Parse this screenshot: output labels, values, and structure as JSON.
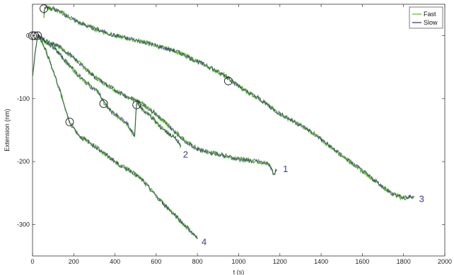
{
  "chart_data": {
    "type": "line",
    "title": "",
    "xlabel": "t (s)",
    "ylabel": "Extension (nm)",
    "xlim": [
      0,
      2000
    ],
    "ylim": [
      -350,
      50
    ],
    "xticks": [
      0,
      200,
      400,
      600,
      800,
      1000,
      1200,
      1400,
      1600,
      1800,
      2000
    ],
    "yticks": [
      -300,
      -200,
      -100,
      0
    ],
    "grid": false,
    "legend_position": "top-right",
    "colors": {
      "Fast": "#5ab52e",
      "Slow": "#2e3070",
      "label": "#3d3a8c",
      "marker": "#222222"
    },
    "series": [
      {
        "name": "Fast",
        "segments": [
          {
            "trace": "1",
            "points": [
              [
                0,
                -65
              ],
              [
                15,
                -20
              ],
              [
                25,
                0
              ],
              [
                50,
                -5
              ],
              [
                80,
                -12
              ],
              [
                120,
                -15
              ],
              [
                180,
                -30
              ],
              [
                250,
                -50
              ],
              [
                300,
                -65
              ],
              [
                360,
                -78
              ],
              [
                420,
                -90
              ],
              [
                480,
                -100
              ],
              [
                540,
                -110
              ],
              [
                600,
                -125
              ],
              [
                650,
                -140
              ],
              [
                700,
                -155
              ],
              [
                750,
                -170
              ],
              [
                800,
                -180
              ],
              [
                850,
                -185
              ],
              [
                900,
                -188
              ],
              [
                950,
                -192
              ],
              [
                1000,
                -196
              ],
              [
                1050,
                -198
              ],
              [
                1100,
                -200
              ],
              [
                1150,
                -205
              ],
              [
                1170,
                -220
              ],
              [
                1185,
                -213
              ]
            ]
          },
          {
            "trace": "2",
            "points": [
              [
                25,
                0
              ],
              [
                100,
                -18
              ],
              [
                160,
                -40
              ],
              [
                220,
                -62
              ],
              [
                280,
                -80
              ],
              [
                320,
                -90
              ],
              [
                350,
                -108
              ],
              [
                380,
                -120
              ],
              [
                420,
                -130
              ],
              [
                460,
                -140
              ],
              [
                495,
                -160
              ],
              [
                505,
                -105
              ],
              [
                540,
                -120
              ],
              [
                580,
                -130
              ],
              [
                620,
                -145
              ],
              [
                660,
                -155
              ],
              [
                700,
                -165
              ],
              [
                720,
                -175
              ]
            ]
          },
          {
            "trace": "3",
            "points": [
              [
                55,
                30
              ],
              [
                60,
                45
              ],
              [
                100,
                43
              ],
              [
                150,
                35
              ],
              [
                200,
                25
              ],
              [
                260,
                16
              ],
              [
                330,
                8
              ],
              [
                400,
                0
              ],
              [
                470,
                -5
              ],
              [
                540,
                -10
              ],
              [
                620,
                -18
              ],
              [
                700,
                -25
              ],
              [
                780,
                -38
              ],
              [
                860,
                -50
              ],
              [
                940,
                -65
              ],
              [
                1020,
                -85
              ],
              [
                1100,
                -100
              ],
              [
                1180,
                -120
              ],
              [
                1260,
                -135
              ],
              [
                1340,
                -150
              ],
              [
                1420,
                -170
              ],
              [
                1500,
                -190
              ],
              [
                1580,
                -210
              ],
              [
                1660,
                -230
              ],
              [
                1740,
                -250
              ],
              [
                1800,
                -258
              ],
              [
                1850,
                -255
              ]
            ]
          },
          {
            "trace": "4",
            "points": [
              [
                30,
                0
              ],
              [
                60,
                -20
              ],
              [
                100,
                -55
              ],
              [
                140,
                -95
              ],
              [
                180,
                -138
              ],
              [
                230,
                -160
              ],
              [
                300,
                -175
              ],
              [
                360,
                -190
              ],
              [
                420,
                -205
              ],
              [
                480,
                -215
              ],
              [
                540,
                -232
              ],
              [
                600,
                -255
              ],
              [
                660,
                -275
              ],
              [
                720,
                -295
              ],
              [
                760,
                -308
              ],
              [
                800,
                -323
              ]
            ]
          }
        ]
      },
      {
        "name": "Slow",
        "segments": [
          {
            "trace": "1",
            "points": [
              [
                0,
                -65
              ],
              [
                15,
                -20
              ],
              [
                25,
                0
              ],
              [
                50,
                -5
              ],
              [
                80,
                -12
              ],
              [
                120,
                -15
              ],
              [
                180,
                -30
              ],
              [
                250,
                -50
              ],
              [
                300,
                -65
              ],
              [
                360,
                -78
              ],
              [
                420,
                -90
              ],
              [
                480,
                -100
              ],
              [
                540,
                -110
              ],
              [
                600,
                -125
              ],
              [
                650,
                -140
              ],
              [
                700,
                -155
              ],
              [
                750,
                -170
              ],
              [
                800,
                -180
              ],
              [
                850,
                -185
              ],
              [
                900,
                -188
              ],
              [
                950,
                -192
              ],
              [
                1000,
                -196
              ],
              [
                1050,
                -198
              ],
              [
                1100,
                -200
              ],
              [
                1150,
                -205
              ],
              [
                1170,
                -220
              ],
              [
                1185,
                -213
              ]
            ]
          },
          {
            "trace": "2",
            "points": [
              [
                25,
                0
              ],
              [
                100,
                -18
              ],
              [
                160,
                -40
              ],
              [
                220,
                -62
              ],
              [
                280,
                -80
              ],
              [
                320,
                -90
              ],
              [
                350,
                -108
              ],
              [
                380,
                -120
              ],
              [
                420,
                -130
              ],
              [
                460,
                -140
              ],
              [
                495,
                -160
              ],
              [
                505,
                -105
              ],
              [
                540,
                -120
              ],
              [
                580,
                -130
              ],
              [
                620,
                -145
              ],
              [
                660,
                -155
              ],
              [
                700,
                -165
              ],
              [
                720,
                -175
              ]
            ]
          },
          {
            "trace": "3",
            "points": [
              [
                55,
                30
              ],
              [
                60,
                45
              ],
              [
                100,
                43
              ],
              [
                150,
                35
              ],
              [
                200,
                25
              ],
              [
                260,
                16
              ],
              [
                330,
                8
              ],
              [
                400,
                0
              ],
              [
                470,
                -5
              ],
              [
                540,
                -10
              ],
              [
                620,
                -18
              ],
              [
                700,
                -25
              ],
              [
                780,
                -38
              ],
              [
                860,
                -50
              ],
              [
                940,
                -65
              ],
              [
                1020,
                -85
              ],
              [
                1100,
                -100
              ],
              [
                1180,
                -120
              ],
              [
                1260,
                -135
              ],
              [
                1340,
                -150
              ],
              [
                1420,
                -170
              ],
              [
                1500,
                -190
              ],
              [
                1580,
                -210
              ],
              [
                1660,
                -230
              ],
              [
                1740,
                -250
              ],
              [
                1800,
                -258
              ],
              [
                1850,
                -255
              ]
            ]
          },
          {
            "trace": "4",
            "points": [
              [
                30,
                0
              ],
              [
                60,
                -20
              ],
              [
                100,
                -55
              ],
              [
                140,
                -95
              ],
              [
                180,
                -138
              ],
              [
                230,
                -160
              ],
              [
                300,
                -175
              ],
              [
                360,
                -190
              ],
              [
                420,
                -205
              ],
              [
                480,
                -215
              ],
              [
                540,
                -232
              ],
              [
                600,
                -255
              ],
              [
                660,
                -275
              ],
              [
                720,
                -295
              ],
              [
                760,
                -308
              ],
              [
                800,
                -323
              ]
            ]
          }
        ]
      }
    ],
    "markers": [
      [
        0,
        0
      ],
      [
        10,
        0
      ],
      [
        25,
        0
      ],
      [
        55,
        43
      ],
      [
        180,
        -137
      ],
      [
        345,
        -108
      ],
      [
        505,
        -110
      ],
      [
        950,
        -72
      ]
    ],
    "annotations": [
      {
        "text": "1",
        "x": 1215,
        "y": -212
      },
      {
        "text": "2",
        "x": 730,
        "y": -189
      },
      {
        "text": "3",
        "x": 1875,
        "y": -260
      },
      {
        "text": "4",
        "x": 820,
        "y": -328
      }
    ]
  }
}
